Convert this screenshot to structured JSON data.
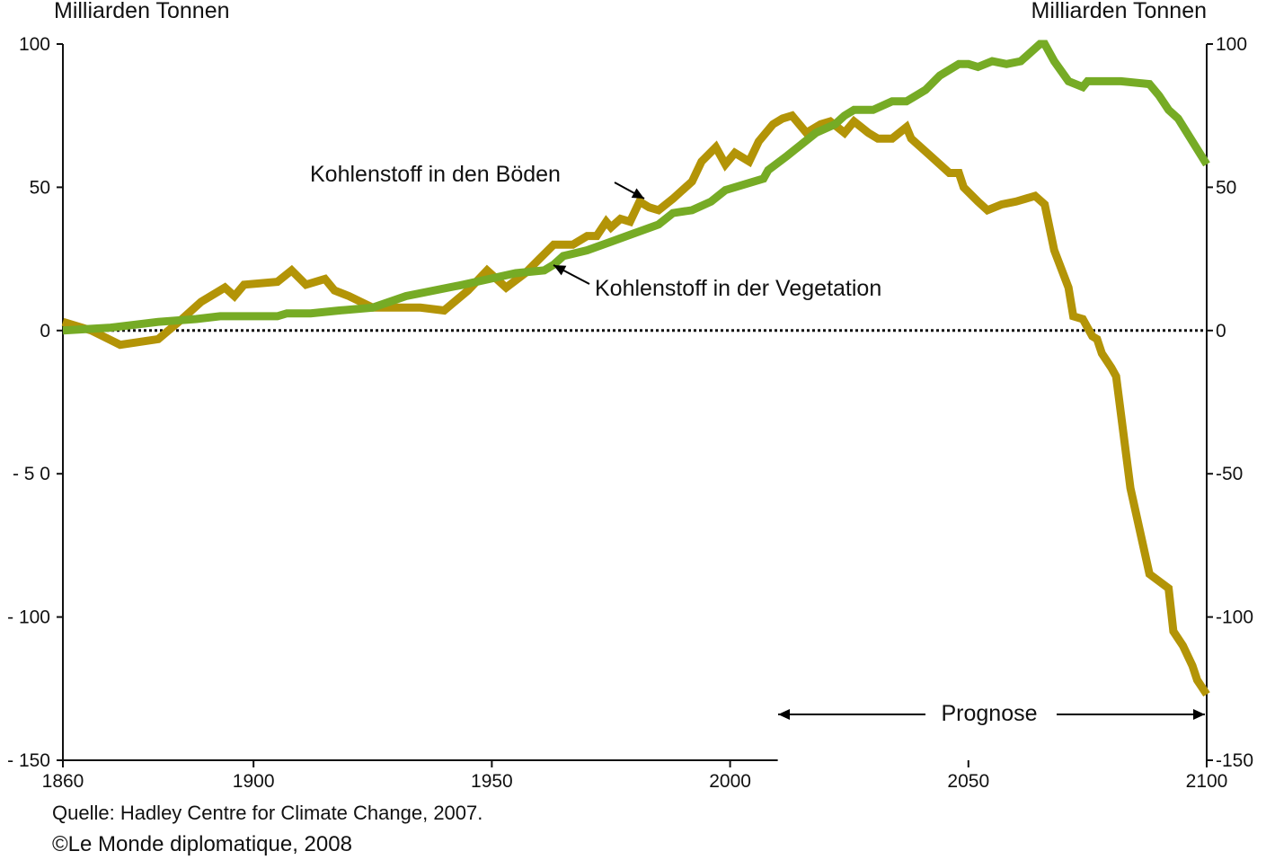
{
  "unit_left": "Milliarden Tonnen",
  "unit_right": "Milliarden Tonnen",
  "source": "Quelle: Hadley Centre for Climate Change, 2007.",
  "copyright": "©Le Monde diplomatique, 2008",
  "colors": {
    "soil": "#b39407",
    "vegetation": "#76ab25",
    "axis": "#111111"
  },
  "chart_data": {
    "type": "line",
    "title": "",
    "xlabel": "",
    "ylabel": "Milliarden Tonnen",
    "xlim": [
      1860,
      2100
    ],
    "ylim": [
      -150,
      100
    ],
    "x_ticks": [
      "1860",
      "1900",
      "1950",
      "2000",
      "2050",
      "2100"
    ],
    "y_ticks_left": [
      "100",
      "50",
      "0",
      "- 5 0",
      "- 100",
      "- 150"
    ],
    "y_ticks_right": [
      "100",
      "50",
      "0",
      "-50",
      "-100",
      "-150"
    ],
    "zero_line": "dotted",
    "series": [
      {
        "name": "Kohlenstoff in den Böden",
        "color": "#b39407",
        "x": [
          1860,
          1866,
          1872,
          1880,
          1885,
          1889,
          1894,
          1896,
          1898,
          1905,
          1908,
          1911,
          1915,
          1917,
          1920,
          1925,
          1935,
          1940,
          1945,
          1949,
          1953,
          1957,
          1960,
          1963,
          1967,
          1970,
          1972,
          1974,
          1975,
          1977,
          1979,
          1981,
          1983,
          1985,
          1988,
          1992,
          1994,
          1997,
          1999,
          2001,
          2004,
          2006,
          2009,
          2011,
          2013,
          2016,
          2019,
          2021,
          2024,
          2026,
          2029,
          2031,
          2034,
          2037,
          2038,
          2040,
          2042,
          2046,
          2048,
          2049,
          2052,
          2054,
          2057,
          2060,
          2064,
          2066,
          2068,
          2071,
          2072,
          2074,
          2076,
          2077,
          2078,
          2080,
          2081,
          2084,
          2088,
          2092,
          2093,
          2095,
          2097,
          2098,
          2100
        ],
        "y": [
          3,
          0,
          -5,
          -3,
          4,
          10,
          15,
          12,
          16,
          17,
          21,
          16,
          18,
          14,
          12,
          8,
          8,
          7,
          14,
          21,
          15,
          20,
          25,
          30,
          30,
          33,
          33,
          38,
          36,
          39,
          38,
          45,
          43,
          42,
          46,
          52,
          59,
          64,
          58,
          62,
          59,
          66,
          72,
          74,
          75,
          69,
          72,
          73,
          69,
          73,
          69,
          67,
          67,
          71,
          67,
          64,
          61,
          55,
          55,
          50,
          45,
          42,
          44,
          45,
          47,
          44,
          28,
          15,
          5,
          4,
          -2,
          -3,
          -8,
          -13,
          -16,
          -55,
          -85,
          -90,
          -105,
          -110,
          -117,
          -122,
          -127
        ]
      },
      {
        "name": "Kohlenstoff in der Vegetation",
        "color": "#76ab25",
        "x": [
          1860,
          1870,
          1880,
          1888,
          1893,
          1905,
          1907,
          1912,
          1918,
          1925,
          1932,
          1944,
          1955,
          1961,
          1963,
          1965,
          1970,
          1975,
          1980,
          1985,
          1988,
          1992,
          1996,
          1999,
          2003,
          2007,
          2008,
          2012,
          2018,
          2022,
          2024,
          2026,
          2030,
          2034,
          2037,
          2041,
          2044,
          2048,
          2050,
          2052,
          2055,
          2058,
          2061,
          2065,
          2066,
          2068,
          2071,
          2074,
          2075,
          2079,
          2082,
          2088,
          2090,
          2092,
          2094,
          2097,
          2100
        ],
        "y": [
          0,
          1,
          3,
          4,
          5,
          5,
          6,
          6,
          7,
          8,
          12,
          16,
          20,
          21,
          23,
          26,
          28,
          31,
          34,
          37,
          41,
          42,
          45,
          49,
          51,
          53,
          56,
          61,
          69,
          72,
          75,
          77,
          77,
          80,
          80,
          84,
          89,
          93,
          93,
          92,
          94,
          93,
          94,
          100,
          100,
          94,
          87,
          85,
          87,
          87,
          87,
          86,
          82,
          77,
          74,
          66,
          58
        ]
      }
    ],
    "annotations": {
      "soil_label": "Kohlenstoff in den Böden",
      "vegetation_label": "Kohlenstoff in der Vegetation",
      "forecast_label": "Prognose",
      "forecast_range": [
        2010,
        2100
      ]
    }
  }
}
